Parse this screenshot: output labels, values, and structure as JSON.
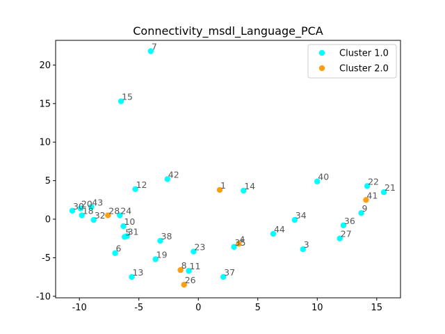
{
  "chart_data": {
    "type": "scatter",
    "title": "Connectivity_msdl_Language_PCA",
    "xlabel": "",
    "ylabel": "",
    "xlim": [
      -12,
      17
    ],
    "ylim": [
      -10.2,
      23.2
    ],
    "xticks": [
      -10,
      -5,
      0,
      5,
      10,
      15
    ],
    "yticks": [
      -10,
      -5,
      0,
      5,
      10,
      15,
      20
    ],
    "grid": false,
    "legend_position": "top-right",
    "series": [
      {
        "name": "Cluster 1.0",
        "color": "#00ffff",
        "points": [
          {
            "label": "7",
            "x": -4.0,
            "y": 21.8
          },
          {
            "label": "15",
            "x": -6.5,
            "y": 15.3
          },
          {
            "label": "42",
            "x": -2.6,
            "y": 5.2
          },
          {
            "label": "12",
            "x": -5.3,
            "y": 3.9
          },
          {
            "label": "14",
            "x": 3.8,
            "y": 3.7
          },
          {
            "label": "40",
            "x": 10.0,
            "y": 4.9
          },
          {
            "label": "22",
            "x": 14.2,
            "y": 4.3
          },
          {
            "label": "21",
            "x": 15.6,
            "y": 3.5
          },
          {
            "label": "9",
            "x": 13.7,
            "y": 0.8
          },
          {
            "label": "30",
            "x": -10.6,
            "y": 1.1
          },
          {
            "label": "20",
            "x": -9.9,
            "y": 1.4
          },
          {
            "label": "43",
            "x": -9.0,
            "y": 1.6
          },
          {
            "label": "18",
            "x": -9.8,
            "y": 0.5
          },
          {
            "label": "32",
            "x": -8.8,
            "y": -0.1
          },
          {
            "label": "24",
            "x": -6.6,
            "y": 0.5
          },
          {
            "label": "10",
            "x": -6.3,
            "y": -0.9
          },
          {
            "label": "5",
            "x": -6.2,
            "y": -2.3
          },
          {
            "label": "31",
            "x": -6.0,
            "y": -2.2
          },
          {
            "label": "6",
            "x": -7.0,
            "y": -4.4
          },
          {
            "label": "38",
            "x": -3.2,
            "y": -2.8
          },
          {
            "label": "19",
            "x": -3.6,
            "y": -5.2
          },
          {
            "label": "23",
            "x": -0.4,
            "y": -4.2
          },
          {
            "label": "11",
            "x": -0.8,
            "y": -6.7
          },
          {
            "label": "13",
            "x": -5.6,
            "y": -7.5
          },
          {
            "label": "37",
            "x": 2.1,
            "y": -7.5
          },
          {
            "label": "34",
            "x": 8.1,
            "y": -0.1
          },
          {
            "label": "44",
            "x": 6.3,
            "y": -1.9
          },
          {
            "label": "3",
            "x": 8.8,
            "y": -3.9
          },
          {
            "label": "36",
            "x": 12.2,
            "y": -0.8
          },
          {
            "label": "27",
            "x": 11.9,
            "y": -2.5
          },
          {
            "label": "35",
            "x": 3.0,
            "y": -3.6
          }
        ]
      },
      {
        "name": "Cluster 2.0",
        "color": "#ff9f0f",
        "points": [
          {
            "label": "1",
            "x": 1.8,
            "y": 3.8
          },
          {
            "label": "41",
            "x": 14.1,
            "y": 2.5
          },
          {
            "label": "28",
            "x": -7.6,
            "y": 0.5
          },
          {
            "label": "4",
            "x": 3.4,
            "y": -3.2
          },
          {
            "label": "8",
            "x": -1.5,
            "y": -6.6
          },
          {
            "label": "26",
            "x": -1.2,
            "y": -8.5
          }
        ]
      }
    ]
  }
}
